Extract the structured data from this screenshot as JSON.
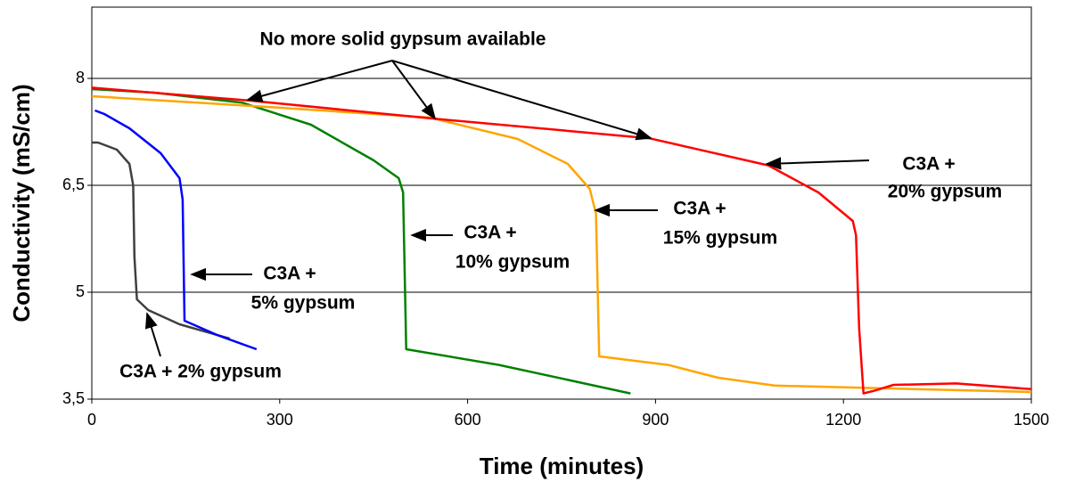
{
  "chart_data": {
    "type": "line",
    "xlabel": "Time (minutes)",
    "ylabel": "Conductivity (mS/cm)",
    "xlim": [
      0,
      1500
    ],
    "xticks": [
      0,
      300,
      600,
      900,
      1200,
      1500
    ],
    "ylim": [
      3.5,
      9
    ],
    "yticks": [
      {
        "value": 3.5,
        "label": "3,5"
      },
      5,
      {
        "value": 6.5,
        "label": "6,5"
      },
      8
    ],
    "grid": true,
    "series": [
      {
        "color": "#404040",
        "x": [
          0,
          10,
          40,
          60,
          66,
          68,
          72,
          90,
          140,
          220
        ],
        "values": [
          7.1,
          7.1,
          7.0,
          6.8,
          6.5,
          5.5,
          4.9,
          4.75,
          4.55,
          4.35
        ]
      },
      {
        "color": "#0000ff",
        "x": [
          5,
          20,
          60,
          110,
          140,
          145,
          148,
          200,
          263
        ],
        "values": [
          7.55,
          7.5,
          7.3,
          6.95,
          6.6,
          6.3,
          4.6,
          4.4,
          4.2
        ]
      },
      {
        "color": "#008000",
        "x": [
          0,
          100,
          240,
          350,
          450,
          490,
          497,
          502,
          650,
          860
        ],
        "values": [
          7.85,
          7.8,
          7.66,
          7.35,
          6.85,
          6.6,
          6.4,
          4.2,
          3.98,
          3.58
        ]
      },
      {
        "color": "#ffa500",
        "x": [
          0,
          280,
          540,
          680,
          760,
          795,
          805,
          810,
          920,
          1000,
          1090,
          1500
        ],
        "values": [
          7.75,
          7.6,
          7.45,
          7.15,
          6.8,
          6.45,
          6.1,
          4.1,
          3.98,
          3.8,
          3.69,
          3.6
        ]
      },
      {
        "color": "#ff0000",
        "x": [
          0,
          250,
          540,
          890,
          1080,
          1160,
          1215,
          1220,
          1225,
          1232,
          1250,
          1280,
          1380,
          1500
        ],
        "values": [
          7.87,
          7.69,
          7.44,
          7.16,
          6.78,
          6.4,
          6.0,
          5.8,
          4.5,
          3.58,
          3.62,
          3.7,
          3.72,
          3.64
        ]
      }
    ],
    "annotations": [
      {
        "lines": [
          "No more solid gypsum available"
        ]
      },
      {
        "lines": [
          "C3A +",
          "20% gypsum"
        ]
      },
      {
        "lines": [
          "C3A +",
          "15% gypsum"
        ]
      },
      {
        "lines": [
          "C3A +",
          "10% gypsum"
        ]
      },
      {
        "lines": [
          "C3A +",
          "5% gypsum"
        ]
      },
      {
        "lines": [
          "C3A + 2% gypsum"
        ]
      }
    ]
  }
}
